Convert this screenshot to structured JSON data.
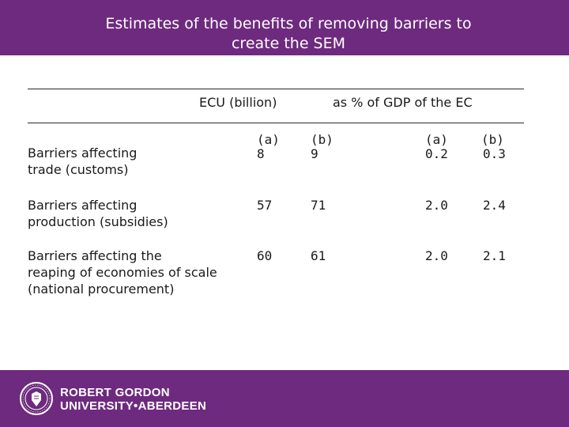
{
  "header": {
    "title_line1": "Estimates of the benefits of removing barriers to",
    "title_line2": "create the SEM"
  },
  "table": {
    "col_group_ecu": "ECU (billion)",
    "col_group_gdp": "as % of GDP of the EC",
    "rows": [
      {
        "label_lines": [
          "Barriers affecting",
          "trade (customs)"
        ],
        "ecu_a_head": "(a)",
        "ecu_b_head": "(b)",
        "gdp_a_head": "(a)",
        "gdp_b_head": "(b)",
        "ecu_a": "8",
        "ecu_b": "9",
        "gdp_a": "0.2",
        "gdp_b": "0.3"
      },
      {
        "label_lines": [
          "Barriers affecting",
          "production (subsidies)"
        ],
        "ecu_a": "57",
        "ecu_b": "71",
        "gdp_a": "2.0",
        "gdp_b": "2.4"
      },
      {
        "label_lines": [
          "Barriers affecting the",
          "reaping of economies of scale",
          "(national procurement)"
        ],
        "ecu_a": "60",
        "ecu_b": "61",
        "gdp_a": "2.0",
        "gdp_b": "2.1"
      }
    ]
  },
  "footer": {
    "logo_line1": "ROBERT GORDON",
    "logo_line2": "UNIVERSITY•ABERDEEN",
    "seal_icon": "university-seal-icon",
    "brand_color": "#6e2a7e"
  }
}
